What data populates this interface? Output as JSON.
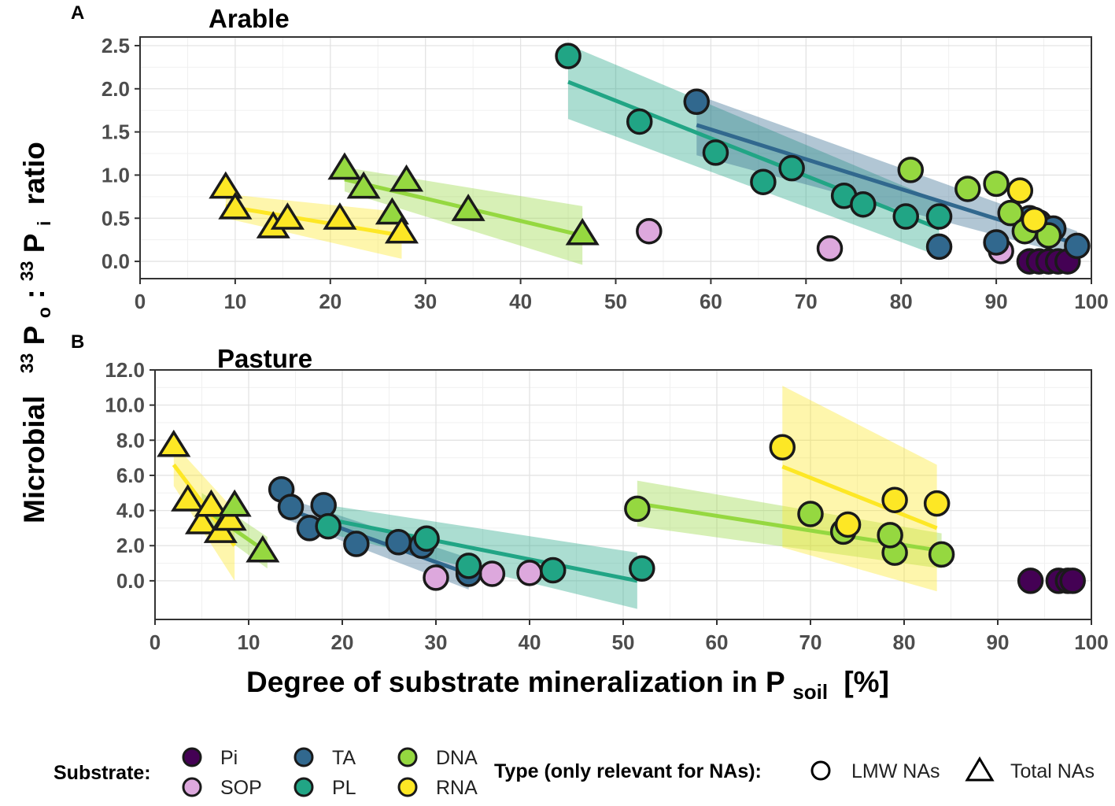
{
  "chart_data": [
    {
      "panel_label": "A",
      "title": "Arable",
      "type": "scatter",
      "xlim": [
        0,
        100
      ],
      "ylim": [
        -0.2,
        2.6
      ],
      "xticks": [
        "0",
        "10",
        "20",
        "30",
        "40",
        "50",
        "60",
        "70",
        "80",
        "90",
        "100"
      ],
      "yticks": [
        "0.0",
        "0.5",
        "1.0",
        "1.5",
        "2.0",
        "2.5"
      ],
      "series": [
        {
          "name": "Pi",
          "shape": "circle",
          "color": "#440154",
          "points": [
            [
              93.5,
              0.0
            ],
            [
              94.5,
              0.0
            ],
            [
              95.5,
              0.0
            ],
            [
              96.5,
              0.0
            ],
            [
              97.5,
              0.0
            ]
          ]
        },
        {
          "name": "SOP",
          "shape": "circle",
          "color": "#dda8dd",
          "points": [
            [
              53.5,
              0.35
            ],
            [
              72.5,
              0.15
            ],
            [
              90.5,
              0.12
            ]
          ]
        },
        {
          "name": "TA",
          "shape": "circle",
          "color": "#31688e",
          "points": [
            [
              58.5,
              1.85
            ],
            [
              84.0,
              0.17
            ],
            [
              90.0,
              0.22
            ],
            [
              93.5,
              0.5
            ],
            [
              94.5,
              0.45
            ],
            [
              96.0,
              0.38
            ],
            [
              98.5,
              0.18
            ]
          ]
        },
        {
          "name": "PL",
          "shape": "circle",
          "color": "#21a585",
          "points": [
            [
              45.0,
              2.38
            ],
            [
              52.5,
              1.62
            ],
            [
              60.5,
              1.26
            ],
            [
              65.5,
              0.92
            ],
            [
              68.5,
              1.08
            ],
            [
              74.0,
              0.76
            ],
            [
              76.0,
              0.66
            ],
            [
              80.5,
              0.52
            ],
            [
              84.0,
              0.52
            ]
          ]
        },
        {
          "name": "DNA",
          "shape": "circle",
          "color": "#95d840",
          "points": [
            [
              81.0,
              1.06
            ],
            [
              87.0,
              0.84
            ],
            [
              90.0,
              0.9
            ],
            [
              91.5,
              0.56
            ],
            [
              93.0,
              0.35
            ],
            [
              95.5,
              0.3
            ]
          ]
        },
        {
          "name": "RNA",
          "shape": "circle",
          "color": "#fde725",
          "points": [
            [
              92.5,
              0.82
            ],
            [
              94.0,
              0.48
            ]
          ]
        },
        {
          "name": "DNA",
          "shape": "triangle",
          "color": "#95d840",
          "points": [
            [
              21.5,
              1.08
            ],
            [
              23.5,
              0.86
            ],
            [
              26.5,
              0.56
            ],
            [
              28.0,
              0.94
            ],
            [
              34.5,
              0.6
            ],
            [
              46.5,
              0.32
            ]
          ]
        },
        {
          "name": "RNA",
          "shape": "triangle",
          "color": "#fde725",
          "points": [
            [
              9.0,
              0.86
            ],
            [
              10.0,
              0.62
            ],
            [
              14.0,
              0.4
            ],
            [
              15.5,
              0.5
            ],
            [
              21.0,
              0.5
            ],
            [
              27.5,
              0.34
            ]
          ]
        }
      ],
      "fits": [
        {
          "name": "RNA",
          "color": "#fde725",
          "x": [
            9,
            27.5
          ],
          "y": [
            0.64,
            0.3
          ],
          "ci_half": [
            0.14,
            0.27
          ]
        },
        {
          "name": "DNA",
          "color": "#95d840",
          "x": [
            21.5,
            46.5
          ],
          "y": [
            0.95,
            0.3
          ],
          "ci_half": [
            0.14,
            0.34
          ]
        },
        {
          "name": "PL",
          "color": "#21a585",
          "x": [
            45,
            84
          ],
          "y": [
            2.08,
            0.38
          ],
          "ci_half": [
            0.43,
            0.32
          ]
        },
        {
          "name": "TA",
          "color": "#31688e",
          "x": [
            58.5,
            98.5
          ],
          "y": [
            1.58,
            0.2
          ],
          "ci_half": [
            0.35,
            0.15
          ]
        }
      ]
    },
    {
      "panel_label": "B",
      "title": "Pasture",
      "type": "scatter",
      "xlim": [
        0,
        100
      ],
      "ylim": [
        -2.2,
        12.0
      ],
      "xticks": [
        "0",
        "10",
        "20",
        "30",
        "40",
        "50",
        "60",
        "70",
        "80",
        "90",
        "100"
      ],
      "yticks": [
        "0.0",
        "2.0",
        "4.0",
        "6.0",
        "8.0",
        "10.0",
        "12.0"
      ],
      "series": [
        {
          "name": "Pi",
          "shape": "circle",
          "color": "#440154",
          "points": [
            [
              93.5,
              0.0
            ],
            [
              96.5,
              0.0
            ],
            [
              97.5,
              0.0
            ],
            [
              98.0,
              0.0
            ]
          ]
        },
        {
          "name": "SOP",
          "shape": "circle",
          "color": "#dda8dd",
          "points": [
            [
              30.0,
              0.18
            ],
            [
              33.5,
              0.5
            ],
            [
              36.0,
              0.4
            ],
            [
              40.0,
              0.45
            ]
          ]
        },
        {
          "name": "TA",
          "shape": "circle",
          "color": "#31688e",
          "points": [
            [
              13.5,
              5.2
            ],
            [
              14.5,
              4.2
            ],
            [
              16.5,
              3.0
            ],
            [
              18.0,
              4.3
            ],
            [
              21.5,
              2.1
            ],
            [
              26.0,
              2.2
            ],
            [
              28.5,
              2.0
            ],
            [
              33.5,
              0.4
            ]
          ]
        },
        {
          "name": "PL",
          "shape": "circle",
          "color": "#21a585",
          "points": [
            [
              18.5,
              3.1
            ],
            [
              29.0,
              2.4
            ],
            [
              33.5,
              0.85
            ],
            [
              42.5,
              0.6
            ],
            [
              52.0,
              0.7
            ]
          ]
        },
        {
          "name": "DNA",
          "shape": "circle",
          "color": "#95d840",
          "points": [
            [
              51.5,
              4.1
            ],
            [
              70.0,
              3.8
            ],
            [
              73.5,
              2.8
            ],
            [
              79.0,
              1.6
            ],
            [
              84.0,
              1.5
            ],
            [
              78.5,
              2.6
            ]
          ]
        },
        {
          "name": "RNA",
          "shape": "circle",
          "color": "#fde725",
          "points": [
            [
              67.0,
              7.6
            ],
            [
              74.0,
              3.2
            ],
            [
              79.0,
              4.6
            ],
            [
              83.5,
              4.4
            ]
          ]
        },
        {
          "name": "RNA",
          "shape": "triangle",
          "color": "#fde725",
          "points": [
            [
              2.0,
              7.7
            ],
            [
              3.5,
              4.6
            ],
            [
              5.0,
              3.3
            ],
            [
              6.0,
              4.3
            ],
            [
              7.0,
              2.8
            ],
            [
              8.0,
              3.5
            ]
          ]
        },
        {
          "name": "DNA",
          "shape": "triangle",
          "color": "#95d840",
          "points": [
            [
              8.5,
              4.3
            ],
            [
              11.5,
              1.7
            ]
          ]
        }
      ],
      "fits": [
        {
          "name": "RNA",
          "color": "#fde725",
          "x": [
            2,
            8.5
          ],
          "y": [
            6.6,
            2.0
          ],
          "ci_half": [
            1.2,
            2.0
          ]
        },
        {
          "name": "DNA",
          "color": "#95d840",
          "x": [
            5,
            12
          ],
          "y": [
            4.2,
            1.6
          ],
          "ci_half": [
            0.8,
            0.9
          ]
        },
        {
          "name": "TA",
          "color": "#31688e",
          "x": [
            13.5,
            33.5
          ],
          "y": [
            4.2,
            0.4
          ],
          "ci_half": [
            0.6,
            0.9
          ]
        },
        {
          "name": "PL",
          "color": "#21a585",
          "x": [
            18.5,
            51.5
          ],
          "y": [
            3.5,
            0.0
          ],
          "ci_half": [
            0.8,
            1.6
          ]
        },
        {
          "name": "DNA",
          "color": "#95d840",
          "x": [
            51.5,
            84
          ],
          "y": [
            4.4,
            1.7
          ],
          "ci_half": [
            1.3,
            1.0
          ]
        },
        {
          "name": "RNA",
          "color": "#fde725",
          "x": [
            67,
            83.5
          ],
          "y": [
            6.5,
            3.0
          ],
          "ci_half": [
            4.6,
            3.6
          ]
        }
      ]
    }
  ],
  "axes": {
    "ylabel_pre": "Microbial",
    "ylabel_sup1": "33",
    "ylabel_p1": "P",
    "ylabel_sub1": "o",
    "ylabel_colon": ":",
    "ylabel_sup2": "33",
    "ylabel_p2": "P",
    "ylabel_sub2": "i",
    "ylabel_post": "ratio",
    "xlabel_main": "Degree of substrate mineralization in P",
    "xlabel_sub": "soil",
    "xlabel_post": "[%]"
  },
  "legend": {
    "substrate_title": "Substrate:",
    "substrates": [
      {
        "label": "Pi",
        "color": "#440154"
      },
      {
        "label": "SOP",
        "color": "#dda8dd"
      },
      {
        "label": "TA",
        "color": "#31688e"
      },
      {
        "label": "PL",
        "color": "#21a585"
      },
      {
        "label": "DNA",
        "color": "#95d840"
      },
      {
        "label": "RNA",
        "color": "#fde725"
      }
    ],
    "type_title": "Type (only relevant for NAs):",
    "types": [
      {
        "label": "LMW NAs",
        "shape": "circle"
      },
      {
        "label": "Total NAs",
        "shape": "triangle"
      }
    ]
  }
}
